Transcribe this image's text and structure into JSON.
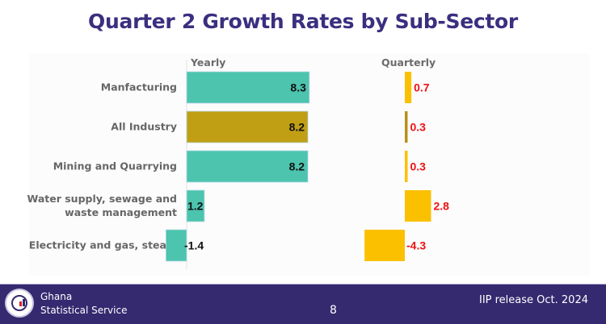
{
  "slide": {
    "title": "Quarter 2 Growth Rates by Sub-Sector"
  },
  "chart_data": {
    "type": "bar",
    "orientation": "horizontal",
    "title": "Quarter 2 Growth Rates by Sub-Sector",
    "categories": [
      "Manfacturing",
      "All Industry",
      "Mining and Quarrying",
      "Water supply, sewage and waste management",
      "Electricity and gas, steam"
    ],
    "category_lines": [
      [
        "Manfacturing"
      ],
      [
        "All Industry"
      ],
      [
        "Mining and Quarrying"
      ],
      [
        "Water supply, sewage and",
        "waste management"
      ],
      [
        "Electricity and gas, steam"
      ]
    ],
    "series": [
      {
        "name": "Yearly",
        "values": [
          8.3,
          8.2,
          8.2,
          1.2,
          -1.4
        ],
        "labels": [
          "8.3",
          "8.2",
          "8.2",
          "1.2",
          "-1.4"
        ],
        "colors": [
          "#4cc4ae",
          "#c19f14",
          "#4cc4ae",
          "#4cc4ae",
          "#4cc4ae"
        ],
        "label_color": "#111111"
      },
      {
        "name": "Quarterly",
        "values": [
          0.7,
          0.3,
          0.3,
          2.8,
          -4.3
        ],
        "labels": [
          "0.7",
          "0.3",
          "0.3",
          "2.8",
          "-4.3"
        ],
        "colors": [
          "#fbc000",
          "#b8901a",
          "#fbc000",
          "#fbc000",
          "#fbc000"
        ],
        "label_color": "#ee1111"
      }
    ],
    "xlabel": "",
    "ylabel": "",
    "grid": false,
    "legend": "none"
  },
  "footer": {
    "org_line1": "Ghana",
    "org_line2": "Statistical Service",
    "page_number": "8",
    "release": "IIP release Oct. 2024"
  }
}
